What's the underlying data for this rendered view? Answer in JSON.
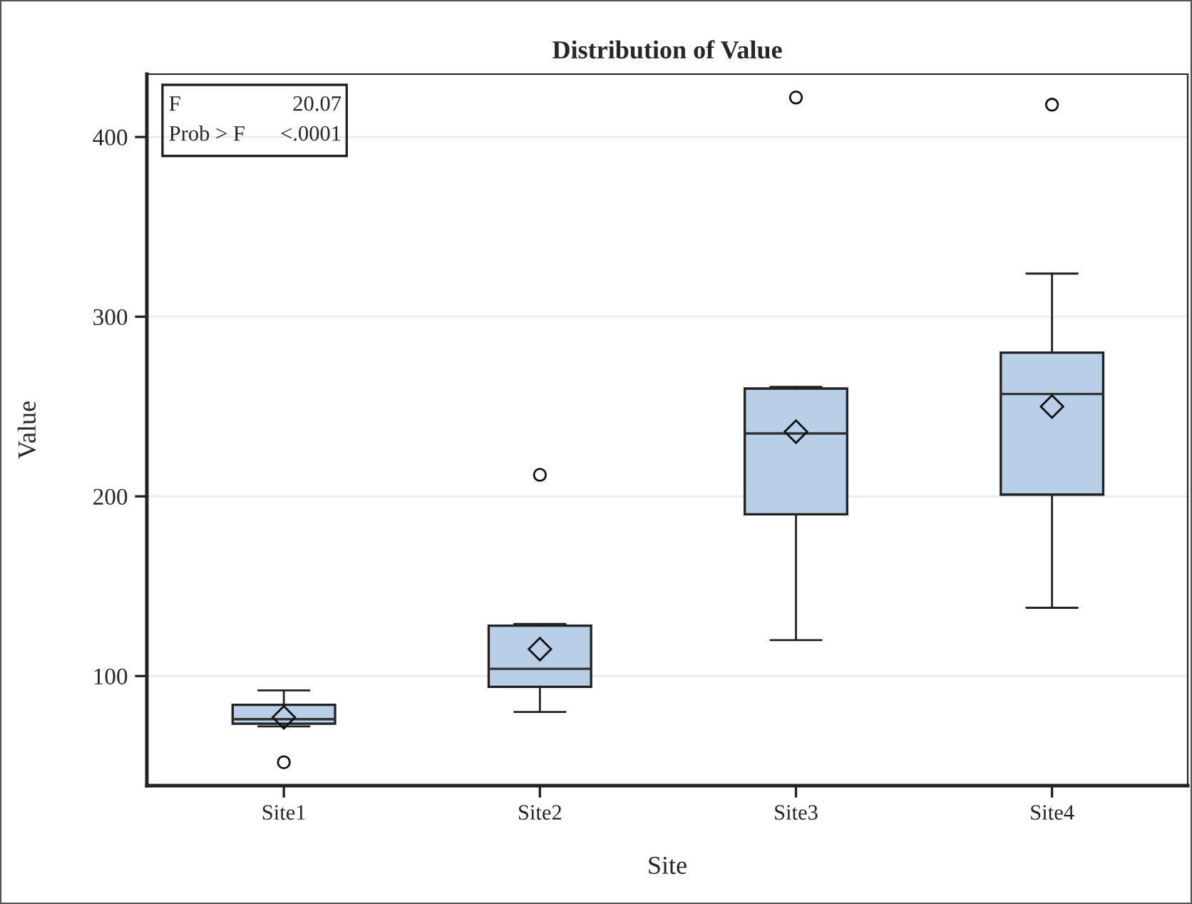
{
  "chart_data": {
    "type": "box",
    "title": "Distribution of Value",
    "xlabel": "Site",
    "ylabel": "Value",
    "categories": [
      "Site1",
      "Site2",
      "Site3",
      "Site4"
    ],
    "boxes": [
      {
        "low": 72,
        "q1": 73.5,
        "median": 76,
        "q3": 84,
        "high": 92,
        "mean": 77,
        "outliers": [
          52
        ]
      },
      {
        "low": 80,
        "q1": 94,
        "median": 104,
        "q3": 128,
        "high": 129,
        "mean": 115,
        "outliers": [
          212
        ]
      },
      {
        "low": 120,
        "q1": 190,
        "median": 235,
        "q3": 260,
        "high": 261,
        "mean": 236,
        "outliers": [
          422
        ]
      },
      {
        "low": 138,
        "q1": 201,
        "median": 257,
        "q3": 280,
        "high": 324,
        "mean": 250,
        "outliers": [
          418
        ]
      }
    ],
    "color": "#b8cfe7",
    "ylim": [
      39,
      435
    ],
    "yticks": [
      100,
      200,
      300,
      400
    ],
    "grid": "y",
    "marker": "diamond",
    "annotations": [
      "F",
      "20.07",
      "Prob > F",
      "<.0001"
    ]
  }
}
